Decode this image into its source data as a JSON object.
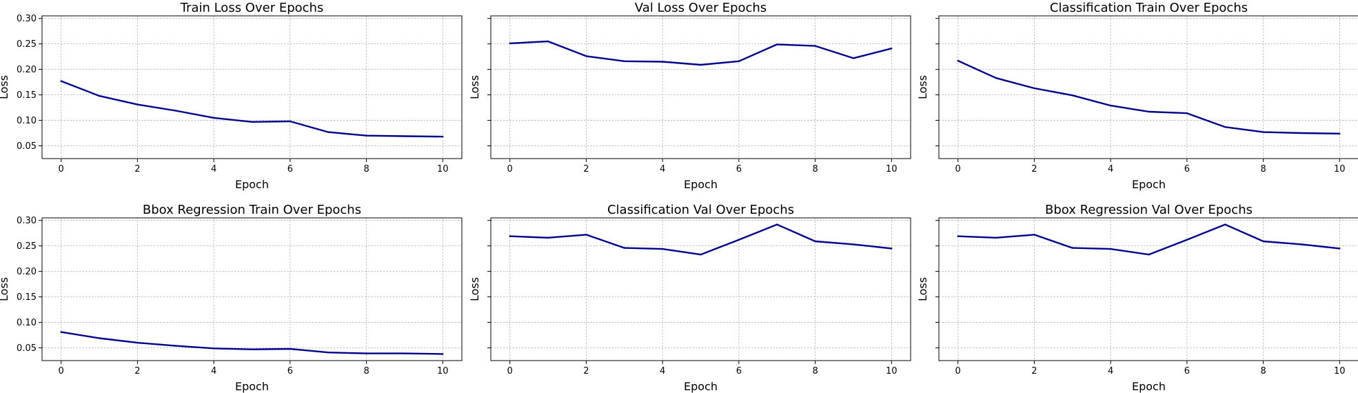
{
  "line_color": "#00008b",
  "grid_color": "#b0b0b0",
  "y_ticks": [
    "0.05",
    "0.10",
    "0.15",
    "0.20",
    "0.25",
    "0.30"
  ],
  "x_ticks": [
    "0",
    "2",
    "4",
    "6",
    "8",
    "10"
  ],
  "chart_data": [
    {
      "type": "line",
      "title": "Train Loss Over Epochs",
      "xlabel": "Epoch",
      "ylabel": "Loss",
      "x": [
        0,
        1,
        2,
        3,
        4,
        5,
        6,
        7,
        8,
        9,
        10
      ],
      "values": [
        0.177,
        0.148,
        0.131,
        0.119,
        0.105,
        0.097,
        0.098,
        0.077,
        0.07,
        0.069,
        0.068
      ],
      "xlim": [
        -0.5,
        10.5
      ],
      "ylim": [
        0.025,
        0.305
      ],
      "grid": true,
      "show_y_tick_labels": true
    },
    {
      "type": "line",
      "title": "Val Loss Over Epochs",
      "xlabel": "Epoch",
      "ylabel": "Loss",
      "x": [
        0,
        1,
        2,
        3,
        4,
        5,
        6,
        7,
        8,
        9,
        10
      ],
      "values": [
        0.251,
        0.255,
        0.226,
        0.216,
        0.215,
        0.209,
        0.216,
        0.249,
        0.246,
        0.222,
        0.241
      ],
      "xlim": [
        -0.5,
        10.5
      ],
      "ylim": [
        0.025,
        0.305
      ],
      "grid": true,
      "show_y_tick_labels": false
    },
    {
      "type": "line",
      "title": "Classification Train Over Epochs",
      "xlabel": "Epoch",
      "ylabel": "Loss",
      "x": [
        0,
        1,
        2,
        3,
        4,
        5,
        6,
        7,
        8,
        9,
        10
      ],
      "values": [
        0.217,
        0.183,
        0.163,
        0.149,
        0.129,
        0.117,
        0.114,
        0.087,
        0.077,
        0.075,
        0.074
      ],
      "xlim": [
        -0.5,
        10.5
      ],
      "ylim": [
        0.025,
        0.305
      ],
      "grid": true,
      "show_y_tick_labels": false
    },
    {
      "type": "line",
      "title": "Bbox Regression Train Over Epochs",
      "xlabel": "Epoch",
      "ylabel": "Loss",
      "x": [
        0,
        1,
        2,
        3,
        4,
        5,
        6,
        7,
        8,
        9,
        10
      ],
      "values": [
        0.081,
        0.069,
        0.06,
        0.054,
        0.049,
        0.047,
        0.048,
        0.041,
        0.039,
        0.039,
        0.038
      ],
      "xlim": [
        -0.5,
        10.5
      ],
      "ylim": [
        0.025,
        0.305
      ],
      "grid": true,
      "show_y_tick_labels": true
    },
    {
      "type": "line",
      "title": "Classification Val Over Epochs",
      "xlabel": "Epoch",
      "ylabel": "Loss",
      "x": [
        0,
        1,
        2,
        3,
        4,
        5,
        6,
        7,
        8,
        9,
        10
      ],
      "values": [
        0.269,
        0.266,
        0.272,
        0.246,
        0.244,
        0.233,
        0.262,
        0.292,
        0.259,
        0.253,
        0.245
      ],
      "xlim": [
        -0.5,
        10.5
      ],
      "ylim": [
        0.025,
        0.305
      ],
      "grid": true,
      "show_y_tick_labels": false
    },
    {
      "type": "line",
      "title": "Bbox Regression Val Over Epochs",
      "xlabel": "Epoch",
      "ylabel": "Loss",
      "x": [
        0,
        1,
        2,
        3,
        4,
        5,
        6,
        7,
        8,
        9,
        10
      ],
      "values": [
        0.269,
        0.266,
        0.272,
        0.246,
        0.244,
        0.233,
        0.262,
        0.292,
        0.259,
        0.253,
        0.245
      ],
      "xlim": [
        -0.5,
        10.5
      ],
      "ylim": [
        0.025,
        0.305
      ],
      "grid": true,
      "show_y_tick_labels": false
    }
  ]
}
